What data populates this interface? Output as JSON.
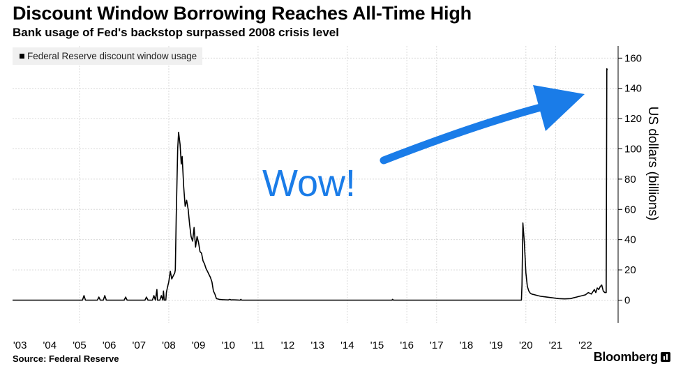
{
  "chart_data": {
    "type": "line",
    "title": "Discount Window Borrowing Reaches All-Time High",
    "subtitle": "Bank usage of Fed's backstop surpassed 2008 crisis level",
    "ylabel": "US dollars (billions)",
    "xlabel": "",
    "ylim": [
      -15,
      168
    ],
    "yticks": [
      0,
      20,
      40,
      60,
      80,
      100,
      120,
      140,
      160
    ],
    "xlim": [
      2002.75,
      2023.1
    ],
    "xticks": [
      2003,
      2004,
      2005,
      2006,
      2007,
      2008,
      2009,
      2010,
      2011,
      2012,
      2013,
      2014,
      2015,
      2016,
      2017,
      2018,
      2019,
      2020,
      2021,
      2022
    ],
    "xtick_labels": [
      "'03",
      "'04",
      "'05",
      "'06",
      "'07",
      "'08",
      "'09",
      "'10",
      "'11",
      "'12",
      "'13",
      "'14",
      "'15",
      "'16",
      "'17",
      "'18",
      "'19",
      "'20",
      "'21",
      "'22"
    ],
    "grid": true,
    "legend_position": "top-left",
    "series": [
      {
        "name": "Federal Reserve discount window usage",
        "color": "#000000",
        "x": [
          2002.75,
          2004.9,
          2005.1,
          2005.15,
          2005.2,
          2005.6,
          2005.65,
          2005.7,
          2005.8,
          2005.85,
          2005.9,
          2006.5,
          2006.55,
          2006.6,
          2006.9,
          2007.0,
          2007.2,
          2007.25,
          2007.3,
          2007.45,
          2007.5,
          2007.55,
          2007.6,
          2007.62,
          2007.7,
          2007.75,
          2007.8,
          2007.82,
          2007.85,
          2007.9,
          2007.92,
          2007.95,
          2008.0,
          2008.05,
          2008.1,
          2008.15,
          2008.2,
          2008.22,
          2008.25,
          2008.3,
          2008.33,
          2008.38,
          2008.42,
          2008.45,
          2008.5,
          2008.55,
          2008.6,
          2008.65,
          2008.7,
          2008.75,
          2008.8,
          2008.85,
          2008.9,
          2008.95,
          2009.0,
          2009.05,
          2009.1,
          2009.15,
          2009.2,
          2009.25,
          2009.3,
          2009.35,
          2009.4,
          2009.45,
          2009.5,
          2009.55,
          2009.6,
          2009.7,
          2009.8,
          2009.9,
          2010.0,
          2010.05,
          2010.1,
          2010.15,
          2010.25,
          2010.4,
          2010.42,
          2010.45,
          2015.5,
          2015.52,
          2015.55,
          2019.85,
          2019.87,
          2019.9,
          2019.95,
          2020.0,
          2020.05,
          2020.1,
          2020.15,
          2020.2,
          2020.3,
          2020.4,
          2020.5,
          2020.7,
          2020.9,
          2021.1,
          2021.3,
          2021.5,
          2021.6,
          2021.7,
          2021.8,
          2021.9,
          2022.0,
          2022.1,
          2022.2,
          2022.3,
          2022.35,
          2022.4,
          2022.45,
          2022.5,
          2022.55,
          2022.6,
          2022.65,
          2022.7,
          2022.72,
          2022.74
        ],
        "y": [
          0,
          0,
          0,
          3,
          0,
          0,
          2,
          0,
          0,
          3,
          0,
          0,
          2,
          0,
          0,
          0,
          0,
          2,
          0,
          0,
          3,
          0,
          7,
          0,
          0,
          3,
          0,
          6,
          0,
          0,
          5,
          8,
          12,
          19,
          14,
          16,
          18,
          20,
          55,
          100,
          111,
          103,
          90,
          95,
          75,
          62,
          66,
          60,
          50,
          42,
          39,
          48,
          35,
          42,
          38,
          32,
          31,
          26,
          24,
          21,
          19,
          17,
          15,
          12,
          6,
          4,
          1,
          0.5,
          0.3,
          0.2,
          0.1,
          0.5,
          0.1,
          0.2,
          0.1,
          0,
          0.5,
          0,
          0,
          0.5,
          0,
          0,
          10,
          51,
          38,
          18,
          9,
          6,
          4.5,
          4,
          3.5,
          3,
          2.5,
          2,
          1.5,
          1,
          0.8,
          1,
          1.5,
          2,
          2.5,
          3,
          3.5,
          5,
          4,
          7,
          5,
          8,
          7,
          9,
          10,
          6,
          5,
          5,
          153,
          152
        ]
      }
    ],
    "annotations": [
      "Wow!"
    ]
  },
  "footer": {
    "source": "Source:  Federal Reserve",
    "brand": "Bloomberg"
  },
  "colors": {
    "arrow": "#1a7ce8",
    "grid": "#d9d9d9",
    "legend_bg": "#f0f0f0"
  }
}
